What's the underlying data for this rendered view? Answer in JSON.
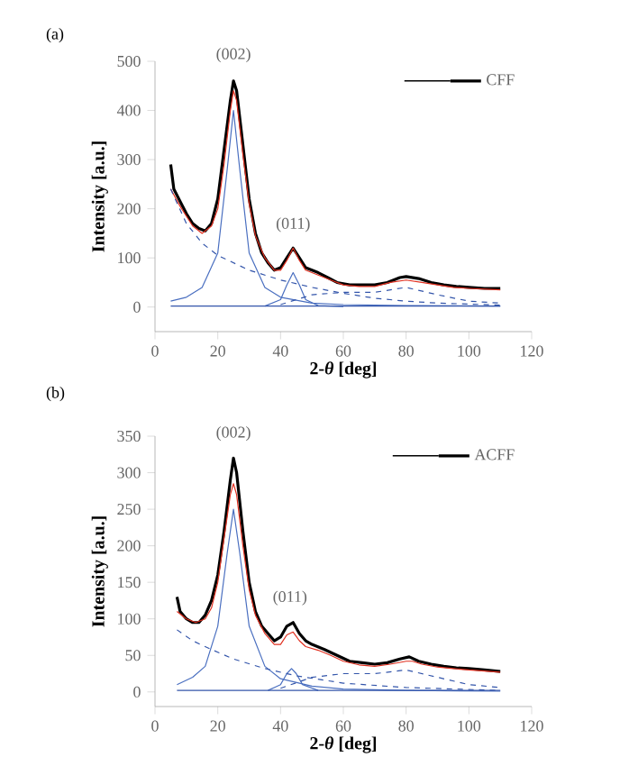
{
  "chart_data": [
    {
      "type": "line",
      "title": "(a)",
      "xlabel": "2-*θ* [deg]",
      "ylabel": "Intensity [a.u.]",
      "xlim": [
        0,
        120
      ],
      "ylim": [
        -50,
        500
      ],
      "xticks": [
        0,
        20,
        40,
        60,
        80,
        100,
        120
      ],
      "yticks": [
        0,
        100,
        200,
        300,
        400,
        500
      ],
      "legend": "top right",
      "annotations": [
        {
          "text": "(002)",
          "x": 25,
          "y": 470
        },
        {
          "text": "(011)",
          "x": 44,
          "y": 125
        }
      ],
      "series": [
        {
          "name": "CFF",
          "color": "#000000",
          "line_style": "solid",
          "x": [
            5,
            6,
            8,
            10,
            12,
            14,
            16,
            18,
            20,
            22,
            24,
            25,
            26,
            28,
            30,
            32,
            34,
            36,
            38,
            40,
            42,
            44,
            46,
            48,
            50,
            52,
            55,
            58,
            62,
            66,
            70,
            74,
            78,
            80,
            84,
            88,
            92,
            96,
            100,
            105,
            110
          ],
          "values": [
            290,
            240,
            215,
            190,
            170,
            160,
            155,
            170,
            220,
            320,
            420,
            460,
            440,
            330,
            220,
            150,
            110,
            90,
            75,
            80,
            100,
            120,
            100,
            80,
            75,
            70,
            60,
            50,
            45,
            45,
            45,
            50,
            60,
            62,
            58,
            50,
            45,
            42,
            40,
            38,
            38
          ]
        },
        {
          "color": "#e03020",
          "line_style": "solid",
          "x": [
            5,
            8,
            12,
            15,
            18,
            20,
            22,
            24,
            25,
            26,
            28,
            30,
            32,
            35,
            38,
            40,
            42,
            44,
            46,
            48,
            52,
            56,
            60,
            65,
            70,
            75,
            80,
            85,
            90,
            95,
            100,
            110
          ],
          "values": [
            240,
            205,
            165,
            150,
            165,
            200,
            290,
            400,
            440,
            420,
            310,
            210,
            145,
            100,
            75,
            75,
            95,
            120,
            95,
            75,
            65,
            55,
            45,
            42,
            42,
            50,
            55,
            50,
            45,
            40,
            38,
            35
          ]
        },
        {
          "color": "#4a6fc0",
          "line_style": "solid",
          "x": [
            5,
            10,
            15,
            20,
            23,
            25,
            27,
            30,
            35,
            40,
            50,
            60,
            80,
            110
          ],
          "values": [
            12,
            20,
            40,
            110,
            280,
            400,
            280,
            110,
            40,
            20,
            8,
            5,
            3,
            2
          ]
        },
        {
          "color": "#4a6fc0",
          "line_style": "solid",
          "x": [
            35,
            40,
            42,
            44,
            46,
            48,
            52,
            60
          ],
          "values": [
            2,
            15,
            45,
            70,
            45,
            15,
            3,
            1
          ]
        },
        {
          "color": "#3355aa",
          "line_style": "dashed",
          "x": [
            5,
            10,
            15,
            20,
            30,
            40,
            50,
            60,
            70,
            80,
            90,
            110
          ],
          "values": [
            240,
            170,
            130,
            105,
            75,
            55,
            40,
            28,
            18,
            12,
            8,
            4
          ]
        },
        {
          "color": "#3355aa",
          "line_style": "dashed",
          "x": [
            40,
            50,
            60,
            70,
            80,
            90,
            100,
            110
          ],
          "values": [
            5,
            25,
            30,
            30,
            40,
            25,
            12,
            8
          ]
        },
        {
          "color": "#3355aa",
          "line_style": "solid",
          "x": [
            5,
            110
          ],
          "values": [
            2,
            2
          ]
        }
      ]
    },
    {
      "type": "line",
      "title": "(b)",
      "xlabel": "2-*θ* [deg]",
      "ylabel": "Intensity [a.u.]",
      "xlim": [
        0,
        120
      ],
      "ylim": [
        -20,
        350
      ],
      "xticks": [
        0,
        20,
        40,
        60,
        80,
        100,
        120
      ],
      "yticks": [
        0,
        50,
        100,
        150,
        200,
        250,
        300,
        350
      ],
      "legend": "top right",
      "annotations": [
        {
          "text": "(002)",
          "x": 25,
          "y": 325
        },
        {
          "text": "(011)",
          "x": 43,
          "y": 100
        }
      ],
      "series": [
        {
          "name": "ACFF",
          "color": "#000000",
          "line_style": "solid",
          "x": [
            7,
            8,
            10,
            12,
            14,
            16,
            18,
            20,
            22,
            24,
            25,
            26,
            28,
            30,
            32,
            34,
            36,
            38,
            40,
            42,
            44,
            46,
            48,
            50,
            54,
            58,
            62,
            66,
            70,
            74,
            78,
            81,
            84,
            88,
            92,
            96,
            100,
            105,
            110
          ],
          "values": [
            130,
            110,
            100,
            95,
            95,
            105,
            125,
            160,
            220,
            290,
            320,
            300,
            220,
            150,
            110,
            90,
            80,
            70,
            75,
            90,
            95,
            80,
            70,
            65,
            58,
            50,
            42,
            40,
            38,
            40,
            45,
            48,
            42,
            38,
            35,
            33,
            32,
            30,
            28
          ]
        },
        {
          "color": "#e03020",
          "line_style": "solid",
          "x": [
            7,
            10,
            13,
            16,
            18,
            20,
            22,
            24,
            25,
            26,
            28,
            30,
            32,
            35,
            38,
            40,
            42,
            44,
            46,
            48,
            52,
            56,
            60,
            65,
            70,
            75,
            80,
            82,
            85,
            90,
            95,
            100,
            110
          ],
          "values": [
            110,
            100,
            95,
            100,
            115,
            150,
            210,
            270,
            285,
            270,
            200,
            140,
            105,
            80,
            65,
            65,
            78,
            82,
            70,
            62,
            57,
            50,
            42,
            37,
            35,
            38,
            42,
            42,
            38,
            34,
            32,
            30,
            27
          ]
        },
        {
          "color": "#4a6fc0",
          "line_style": "solid",
          "x": [
            7,
            12,
            16,
            20,
            23,
            25,
            27,
            30,
            35,
            40,
            50,
            60,
            80,
            110
          ],
          "values": [
            10,
            20,
            35,
            90,
            190,
            250,
            190,
            90,
            35,
            18,
            8,
            4,
            2,
            1
          ]
        },
        {
          "color": "#4a6fc0",
          "line_style": "solid",
          "x": [
            36,
            40,
            42,
            43.5,
            45,
            47,
            52
          ],
          "values": [
            2,
            10,
            25,
            32,
            25,
            10,
            2
          ]
        },
        {
          "color": "#3355aa",
          "line_style": "dashed",
          "x": [
            7,
            12,
            18,
            25,
            35,
            45,
            60,
            80,
            110
          ],
          "values": [
            85,
            70,
            58,
            45,
            32,
            22,
            12,
            6,
            2
          ]
        },
        {
          "color": "#3355aa",
          "line_style": "dashed",
          "x": [
            40,
            50,
            60,
            70,
            80,
            90,
            100,
            110
          ],
          "values": [
            5,
            20,
            25,
            25,
            30,
            20,
            10,
            6
          ]
        },
        {
          "color": "#3355aa",
          "line_style": "solid",
          "x": [
            7,
            110
          ],
          "values": [
            2,
            2
          ]
        }
      ]
    }
  ]
}
